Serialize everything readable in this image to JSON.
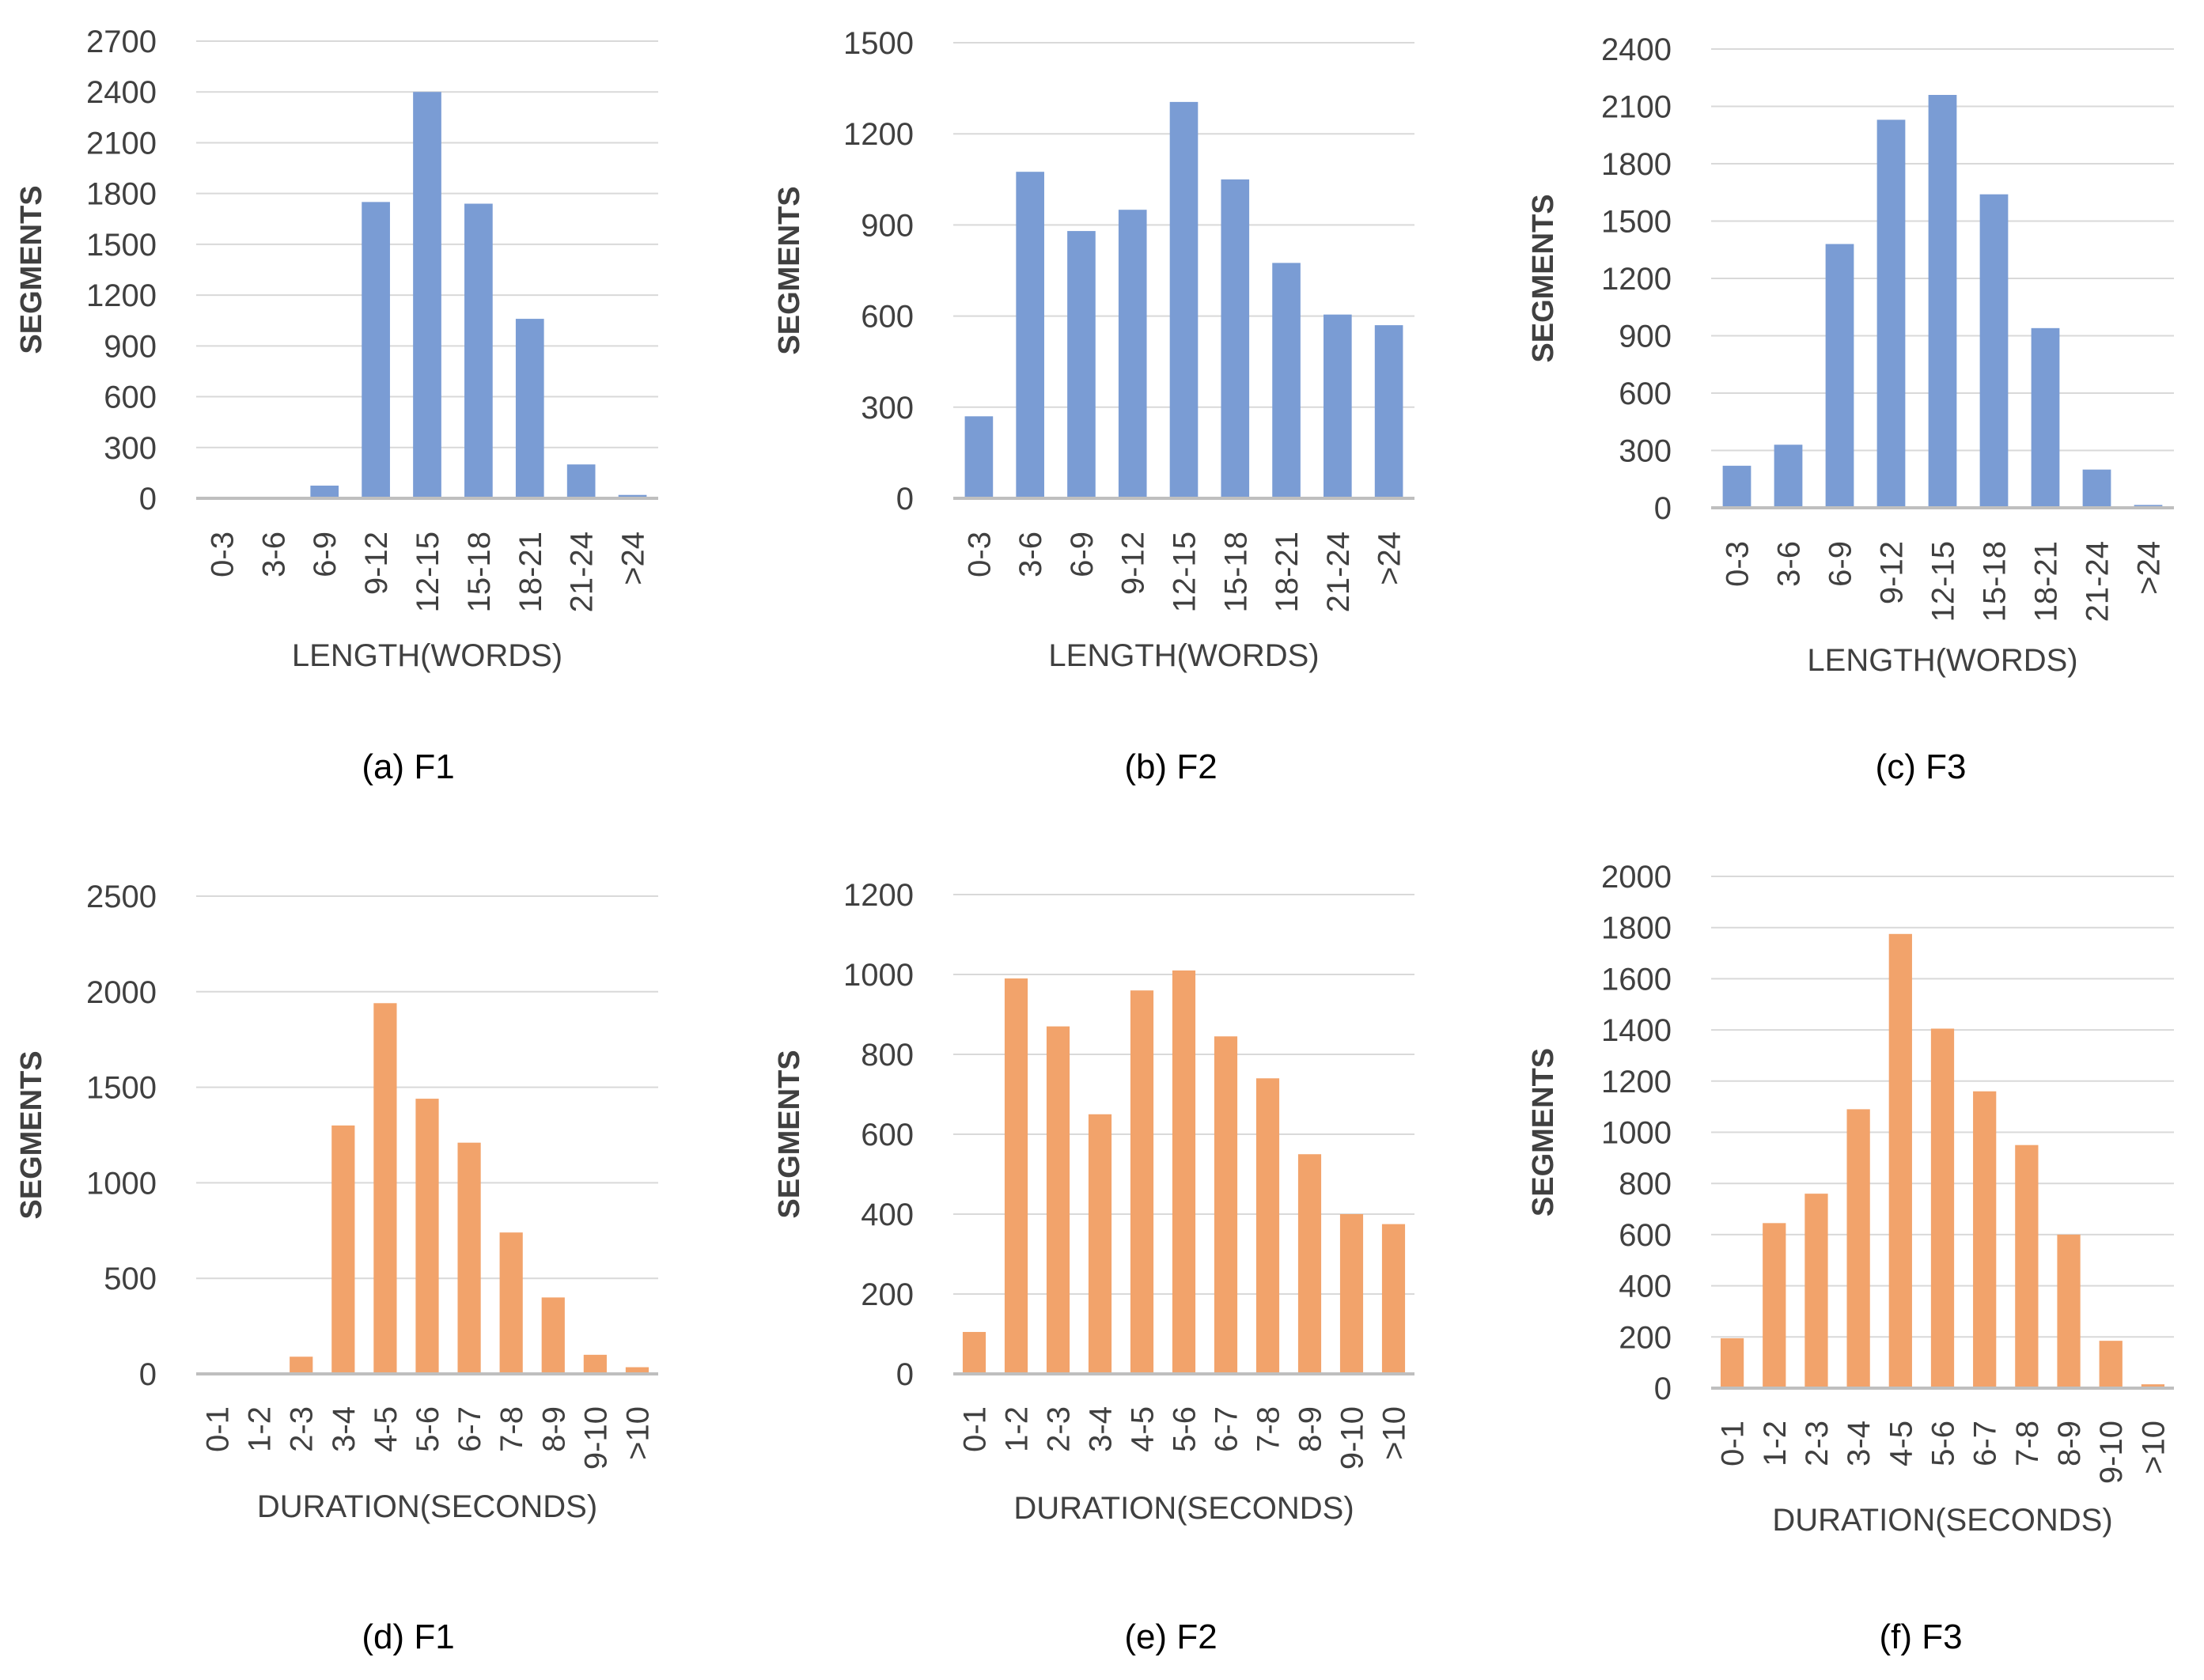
{
  "colors": {
    "length_bar": "#7a9cd4",
    "duration_bar": "#f2a36b",
    "grid": "#d9d9d9",
    "axis": "#bfbfbf",
    "text": "#404040"
  },
  "chart_data": [
    {
      "id": "a",
      "type": "bar",
      "caption": "(a) F1",
      "ylabel": "SEGMENTS",
      "xlabel": "LENGTH(WORDS)",
      "categories": [
        "0-3",
        "3-6",
        "6-9",
        "9-12",
        "12-15",
        "15-18",
        "18-21",
        "21-24",
        ">24"
      ],
      "values": [
        5,
        8,
        75,
        1750,
        2400,
        1740,
        1060,
        200,
        20
      ],
      "ylim": [
        0,
        2700
      ],
      "yticks": [
        0,
        300,
        600,
        900,
        1200,
        1500,
        1800,
        2100,
        2400,
        2700
      ],
      "color": "#7a9cd4",
      "grid": true
    },
    {
      "id": "b",
      "type": "bar",
      "caption": "(b) F2",
      "ylabel": "SEGMENTS",
      "xlabel": "LENGTH(WORDS)",
      "categories": [
        "0-3",
        "3-6",
        "6-9",
        "9-12",
        "12-15",
        "15-18",
        "18-21",
        "21-24",
        ">24"
      ],
      "values": [
        270,
        1075,
        880,
        950,
        1305,
        1050,
        775,
        605,
        570
      ],
      "ylim": [
        0,
        1500
      ],
      "yticks": [
        0,
        300,
        600,
        900,
        1200,
        1500
      ],
      "color": "#7a9cd4",
      "grid": true
    },
    {
      "id": "c",
      "type": "bar",
      "caption": "(c) F3",
      "ylabel": "SEGMENTS",
      "xlabel": "LENGTH(WORDS)",
      "categories": [
        "0-3",
        "3-6",
        "6-9",
        "9-12",
        "12-15",
        "15-18",
        "18-21",
        "21-24",
        ">24"
      ],
      "values": [
        220,
        330,
        1380,
        2030,
        2160,
        1640,
        940,
        200,
        15
      ],
      "ylim": [
        0,
        2400
      ],
      "yticks": [
        0,
        300,
        600,
        900,
        1200,
        1500,
        1800,
        2100,
        2400
      ],
      "color": "#7a9cd4",
      "grid": true
    },
    {
      "id": "d",
      "type": "bar",
      "caption": "(d) F1",
      "ylabel": "SEGMENTS",
      "xlabel": "DURATION(SECONDS)",
      "categories": [
        "0-1",
        "1-2",
        "2-3",
        "3-4",
        "4-5",
        "5-6",
        "6-7",
        "7-8",
        "8-9",
        "9-10",
        ">10"
      ],
      "values": [
        5,
        5,
        90,
        1300,
        1940,
        1440,
        1210,
        740,
        400,
        100,
        35
      ],
      "ylim": [
        0,
        2500
      ],
      "yticks": [
        0,
        500,
        1000,
        1500,
        2000,
        2500
      ],
      "color": "#f2a36b",
      "grid": true
    },
    {
      "id": "e",
      "type": "bar",
      "caption": "(e) F2",
      "ylabel": "SEGMENTS",
      "xlabel": "DURATION(SECONDS)",
      "categories": [
        "0-1",
        "1-2",
        "2-3",
        "3-4",
        "4-5",
        "5-6",
        "6-7",
        "7-8",
        "8-9",
        "9-10",
        ">10"
      ],
      "values": [
        105,
        990,
        870,
        650,
        960,
        1010,
        845,
        740,
        550,
        400,
        375
      ],
      "ylim": [
        0,
        1200
      ],
      "yticks": [
        0,
        200,
        400,
        600,
        800,
        1000,
        1200
      ],
      "color": "#f2a36b",
      "grid": true
    },
    {
      "id": "f",
      "type": "bar",
      "caption": "(f) F3",
      "ylabel": "SEGMENTS",
      "xlabel": "DURATION(SECONDS)",
      "categories": [
        "0-1",
        "1-2",
        "2-3",
        "3-4",
        "4-5",
        "5-6",
        "6-7",
        "7-8",
        "8-9",
        "9-10",
        ">10"
      ],
      "values": [
        195,
        645,
        760,
        1090,
        1775,
        1405,
        1160,
        950,
        600,
        185,
        15
      ],
      "ylim": [
        0,
        2000
      ],
      "yticks": [
        0,
        200,
        400,
        600,
        800,
        1000,
        1200,
        1400,
        1600,
        1800,
        2000
      ],
      "color": "#f2a36b",
      "grid": true
    }
  ]
}
